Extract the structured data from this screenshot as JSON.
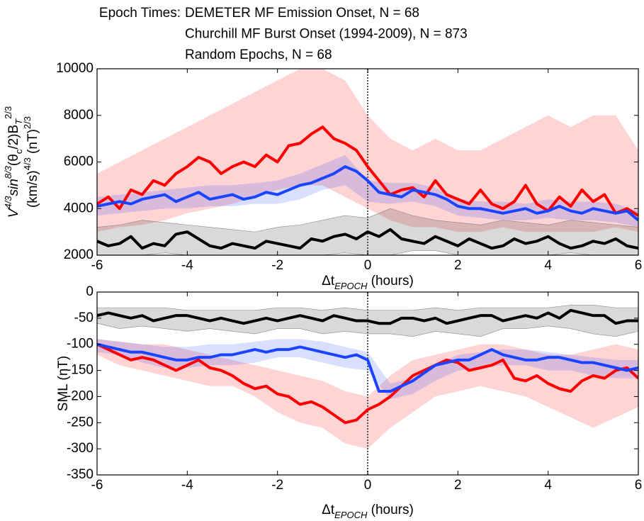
{
  "chart_data": [
    {
      "type": "line",
      "legend_title": "Epoch Times:",
      "ylabel_lines": [
        [
          {
            "text": "V",
            "script": "base",
            "italic": true
          },
          {
            "text": "4/3",
            "script": "sup",
            "italic": true
          },
          {
            "text": "sin",
            "script": "base",
            "italic": true
          },
          {
            "text": "8/3",
            "script": "sup",
            "italic": true
          },
          {
            "text": "(θ",
            "script": "base",
            "italic": false
          },
          {
            "text": "c",
            "script": "sub",
            "italic": false
          },
          {
            "text": "/2)B",
            "script": "base",
            "italic": false
          },
          {
            "text": "T",
            "script": "sub",
            "italic": true
          },
          {
            "text": "2/3",
            "script": "sup",
            "italic": false
          }
        ],
        [
          {
            "text": "(km/s)",
            "script": "base",
            "italic": false
          },
          {
            "text": "4/3",
            "script": "sup",
            "italic": false
          },
          {
            "text": " (nT)",
            "script": "base",
            "italic": false
          },
          {
            "text": "2/3",
            "script": "sup",
            "italic": false
          }
        ]
      ],
      "xlabel_parts": [
        {
          "text": "Δt",
          "script": "base",
          "italic": false
        },
        {
          "text": "EPOCH",
          "script": "sub",
          "italic": true
        },
        {
          "text": " (hours)",
          "script": "base",
          "italic": false
        }
      ],
      "xlim": [
        -6,
        6
      ],
      "xticks": [
        -6,
        -4,
        -2,
        0,
        2,
        4,
        6
      ],
      "ylim": [
        2000,
        10000
      ],
      "yticks": [
        2000,
        4000,
        6000,
        8000,
        10000
      ],
      "vline": 0,
      "x": [
        -6,
        -5.75,
        -5.5,
        -5.25,
        -5,
        -4.75,
        -4.5,
        -4.25,
        -4,
        -3.75,
        -3.5,
        -3.25,
        -3,
        -2.75,
        -2.5,
        -2.25,
        -2,
        -1.75,
        -1.5,
        -1.25,
        -1,
        -0.75,
        -0.5,
        -0.25,
        0,
        0.25,
        0.5,
        0.75,
        1,
        1.25,
        1.5,
        1.75,
        2,
        2.25,
        2.5,
        2.75,
        3,
        3.25,
        3.5,
        3.75,
        4,
        4.25,
        4.5,
        4.75,
        5,
        5.25,
        5.5,
        5.75,
        6
      ],
      "band_x": [
        -6,
        -5.5,
        -5,
        -4.5,
        -4,
        -3.5,
        -3,
        -2.5,
        -2,
        -1.5,
        -1,
        -0.5,
        0,
        0.5,
        1,
        1.5,
        2,
        2.5,
        3,
        3.5,
        4,
        4.5,
        5,
        5.5,
        6
      ],
      "series": [
        {
          "name": "DEMETER MF Emission Onset, N = 68",
          "color": "#ff0000",
          "values": [
            4200,
            4500,
            4000,
            4800,
            4600,
            5200,
            5000,
            5500,
            5800,
            6200,
            6000,
            5500,
            5800,
            6000,
            5800,
            6300,
            6000,
            6700,
            6800,
            7200,
            7500,
            7000,
            6800,
            6500,
            5800,
            5200,
            4600,
            4800,
            4900,
            4500,
            5200,
            4600,
            4400,
            4200,
            4800,
            4200,
            4000,
            4300,
            5000,
            4200,
            3900,
            4500,
            4100,
            4800,
            4300,
            4600,
            3800,
            4000,
            3700
          ],
          "band_lo": [
            3000,
            3200,
            3300,
            3500,
            3800,
            4000,
            4200,
            4500,
            4800,
            5000,
            5000,
            4500,
            4000,
            3500,
            3200,
            3200,
            3000,
            3000,
            3200,
            3000,
            3000,
            3000,
            3000,
            3200,
            3000
          ],
          "band_hi": [
            5500,
            6000,
            6500,
            7000,
            7500,
            8000,
            8500,
            9000,
            9500,
            10000,
            10000,
            9500,
            8000,
            7000,
            6500,
            7000,
            6500,
            6500,
            7000,
            7500,
            8000,
            7500,
            8000,
            8000,
            6500
          ]
        },
        {
          "name": "Churchill MF Burst Onset (1994-2009), N = 873",
          "color": "#1a44ff",
          "values": [
            4100,
            4200,
            4300,
            4200,
            4400,
            4500,
            4600,
            4300,
            4500,
            4700,
            4400,
            4500,
            4600,
            4400,
            4500,
            4700,
            4600,
            4800,
            5000,
            5100,
            5300,
            5500,
            5800,
            5600,
            5200,
            4700,
            4600,
            4500,
            4800,
            4700,
            4600,
            4400,
            4100,
            4000,
            4000,
            3900,
            3800,
            3900,
            4000,
            3800,
            3900,
            4100,
            3900,
            3800,
            4000,
            3900,
            3800,
            3900,
            3500
          ],
          "band_lo": [
            3700,
            3800,
            3900,
            4000,
            4000,
            4100,
            4100,
            4200,
            4200,
            4400,
            4800,
            5000,
            4300,
            4200,
            4300,
            4100,
            3700,
            3600,
            3500,
            3500,
            3600,
            3500,
            3500,
            3400,
            3200
          ],
          "band_hi": [
            4500,
            4600,
            4700,
            4800,
            4900,
            5000,
            5000,
            5100,
            5200,
            5500,
            5900,
            6300,
            5200,
            5100,
            5100,
            4900,
            4400,
            4300,
            4300,
            4200,
            4400,
            4300,
            4300,
            4200,
            3900
          ]
        },
        {
          "name": "Random Epochs, N = 68",
          "color": "#000000",
          "values": [
            2600,
            2400,
            2500,
            2800,
            2300,
            2500,
            2400,
            2900,
            3000,
            2700,
            2400,
            2300,
            2500,
            2400,
            2300,
            2600,
            2500,
            2400,
            2300,
            2700,
            2600,
            2800,
            2900,
            2700,
            3000,
            2800,
            3100,
            2700,
            2600,
            2500,
            2800,
            2600,
            2400,
            2700,
            2500,
            2300,
            2400,
            2700,
            2500,
            2600,
            2800,
            2500,
            2300,
            2400,
            2600,
            2500,
            2700,
            2400,
            2300
          ],
          "band_lo": [
            2000,
            2000,
            2000,
            2100,
            2000,
            2000,
            2000,
            2000,
            2000,
            2000,
            2000,
            2100,
            2000,
            2000,
            2200,
            2200,
            2000,
            2000,
            2000,
            2000,
            2000,
            2100,
            2000,
            2000,
            2000
          ],
          "band_hi": [
            3200,
            3300,
            3500,
            3400,
            3300,
            3200,
            3100,
            3000,
            3200,
            3300,
            3500,
            3700,
            3600,
            4000,
            3700,
            3500,
            3400,
            3300,
            3500,
            3400,
            3300,
            3500,
            3400,
            3300,
            3200
          ]
        }
      ]
    },
    {
      "type": "line",
      "ylabel_lines": [
        [
          {
            "text": "SML (nT)",
            "script": "base",
            "italic": false
          }
        ]
      ],
      "xlabel_parts": [
        {
          "text": "Δt",
          "script": "base",
          "italic": false
        },
        {
          "text": "EPOCH",
          "script": "sub",
          "italic": true
        },
        {
          "text": " (hours)",
          "script": "base",
          "italic": false
        }
      ],
      "xlim": [
        -6,
        6
      ],
      "xticks": [
        -6,
        -4,
        -2,
        0,
        2,
        4,
        6
      ],
      "ylim": [
        -350,
        0
      ],
      "yticks": [
        -350,
        -300,
        -250,
        -200,
        -150,
        -100,
        -50,
        0
      ],
      "vline": 0,
      "x": [
        -6,
        -5.75,
        -5.5,
        -5.25,
        -5,
        -4.75,
        -4.5,
        -4.25,
        -4,
        -3.75,
        -3.5,
        -3.25,
        -3,
        -2.75,
        -2.5,
        -2.25,
        -2,
        -1.75,
        -1.5,
        -1.25,
        -1,
        -0.75,
        -0.5,
        -0.25,
        0,
        0.25,
        0.5,
        0.75,
        1,
        1.25,
        1.5,
        1.75,
        2,
        2.25,
        2.5,
        2.75,
        3,
        3.25,
        3.5,
        3.75,
        4,
        4.25,
        4.5,
        4.75,
        5,
        5.25,
        5.5,
        5.75,
        6
      ],
      "band_x": [
        -6,
        -5.5,
        -5,
        -4.5,
        -4,
        -3.5,
        -3,
        -2.5,
        -2,
        -1.5,
        -1,
        -0.5,
        0,
        0.5,
        1,
        1.5,
        2,
        2.5,
        3,
        3.5,
        4,
        4.5,
        5,
        5.5,
        6
      ],
      "series": [
        {
          "color": "#ff0000",
          "values": [
            -100,
            -110,
            -120,
            -130,
            -125,
            -130,
            -140,
            -150,
            -140,
            -130,
            -145,
            -150,
            -160,
            -175,
            -185,
            -180,
            -195,
            -200,
            -215,
            -210,
            -220,
            -235,
            -250,
            -245,
            -225,
            -215,
            -200,
            -180,
            -160,
            -150,
            -140,
            -130,
            -135,
            -150,
            -145,
            -140,
            -130,
            -165,
            -170,
            -160,
            -175,
            -185,
            -190,
            -170,
            -160,
            -165,
            -150,
            -145,
            -165
          ],
          "band_lo": [
            -120,
            -140,
            -150,
            -160,
            -170,
            -180,
            -180,
            -200,
            -230,
            -250,
            -260,
            -290,
            -300,
            -260,
            -230,
            -200,
            -190,
            -180,
            -190,
            -200,
            -220,
            -240,
            -260,
            -240,
            -220
          ],
          "band_hi": [
            -90,
            -95,
            -100,
            -100,
            -110,
            -120,
            -130,
            -140,
            -150,
            -160,
            -170,
            -190,
            -200,
            -160,
            -130,
            -120,
            -110,
            -100,
            -100,
            -110,
            -120,
            -120,
            -110,
            -100,
            -110
          ]
        },
        {
          "color": "#1a44ff",
          "values": [
            -100,
            -105,
            -110,
            -115,
            -115,
            -120,
            -125,
            -130,
            -130,
            -125,
            -125,
            -120,
            -120,
            -115,
            -110,
            -115,
            -110,
            -110,
            -105,
            -110,
            -115,
            -120,
            -125,
            -120,
            -130,
            -190,
            -190,
            -180,
            -170,
            -155,
            -140,
            -135,
            -130,
            -130,
            -120,
            -110,
            -120,
            -125,
            -130,
            -130,
            -125,
            -125,
            -130,
            -135,
            -135,
            -140,
            -145,
            -150,
            -145
          ],
          "band_lo": [
            -115,
            -120,
            -135,
            -145,
            -145,
            -140,
            -140,
            -135,
            -125,
            -125,
            -135,
            -145,
            -150,
            -205,
            -195,
            -170,
            -150,
            -145,
            -140,
            -140,
            -150,
            -150,
            -160,
            -165,
            -165
          ],
          "band_hi": [
            -90,
            -95,
            -100,
            -105,
            -105,
            -100,
            -100,
            -95,
            -90,
            -90,
            -95,
            -105,
            -115,
            -175,
            -165,
            -140,
            -120,
            -115,
            -110,
            -110,
            -115,
            -120,
            -125,
            -130,
            -130
          ]
        },
        {
          "color": "#000000",
          "values": [
            -45,
            -40,
            -45,
            -50,
            -45,
            -55,
            -50,
            -45,
            -45,
            -50,
            -55,
            -50,
            -55,
            -60,
            -55,
            -50,
            -55,
            -50,
            -45,
            -50,
            -55,
            -45,
            -50,
            -55,
            -55,
            -60,
            -60,
            -50,
            -50,
            -55,
            -50,
            -60,
            -55,
            -50,
            -45,
            -45,
            -55,
            -50,
            -45,
            -50,
            -40,
            -50,
            -35,
            -40,
            -45,
            -45,
            -60,
            -55,
            -55
          ],
          "band_lo": [
            -60,
            -70,
            -65,
            -70,
            -75,
            -70,
            -75,
            -80,
            -70,
            -70,
            -80,
            -75,
            -80,
            -80,
            -85,
            -75,
            -80,
            -85,
            -70,
            -70,
            -65,
            -70,
            -80,
            -85,
            -75
          ],
          "band_hi": [
            -30,
            -30,
            -30,
            -30,
            -35,
            -35,
            -35,
            -35,
            -30,
            -30,
            -35,
            -30,
            -35,
            -35,
            -35,
            -30,
            -35,
            -30,
            -30,
            -30,
            -30,
            -25,
            -25,
            -30,
            -30
          ]
        }
      ]
    }
  ]
}
